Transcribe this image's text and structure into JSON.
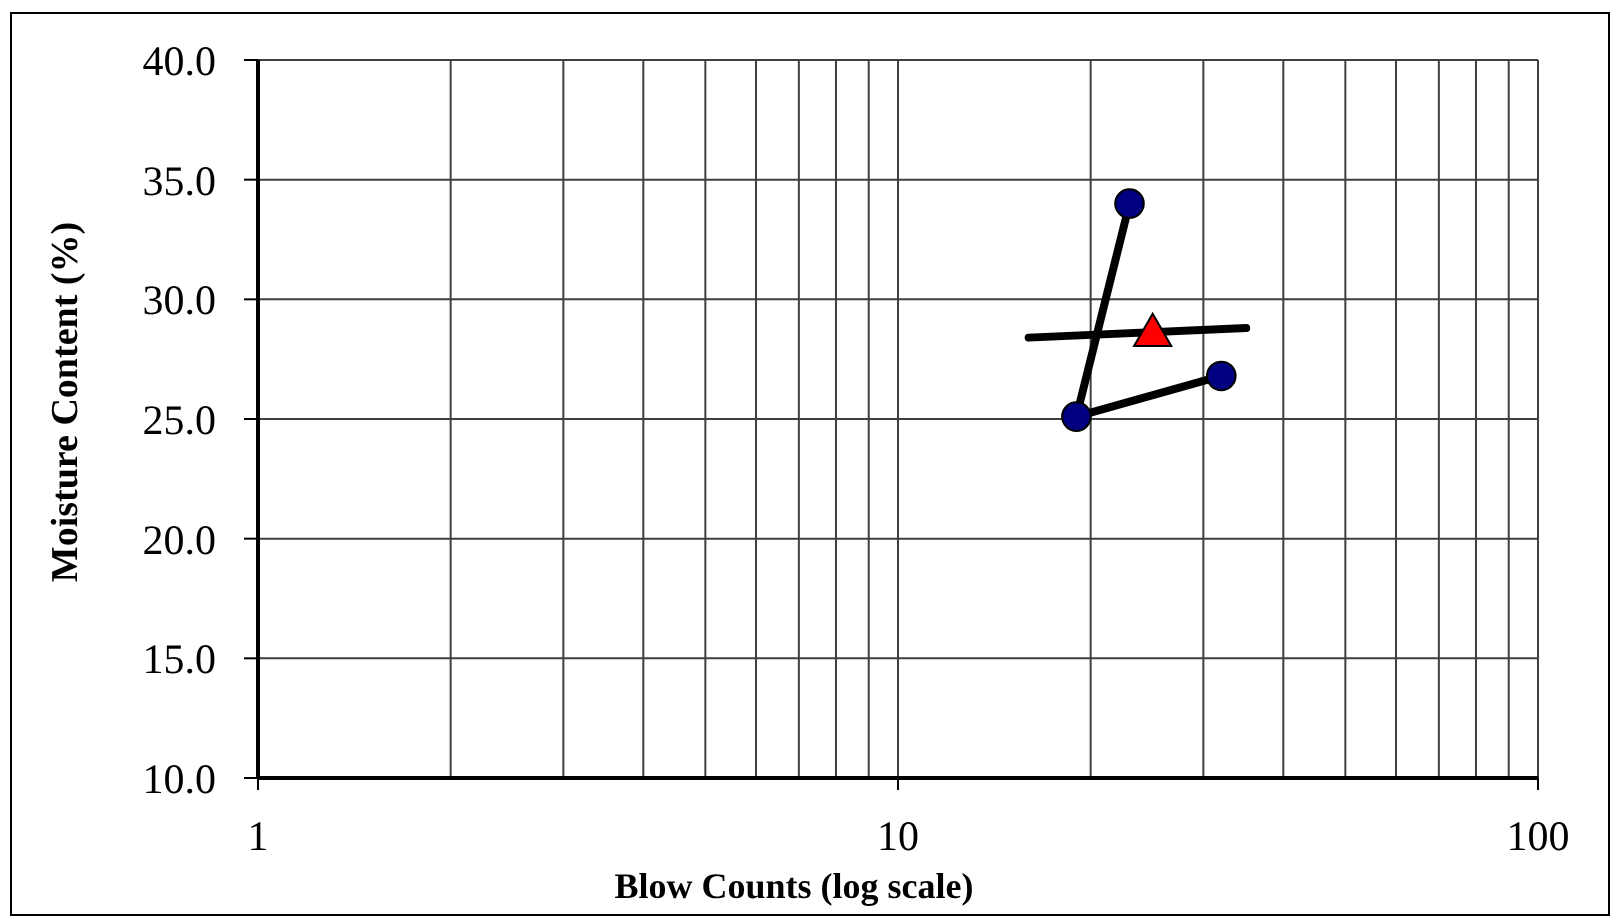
{
  "chart_data": {
    "type": "scatter",
    "xlabel": "Blow Counts (log scale)",
    "ylabel": "Moisture Content (%)",
    "series": [
      {
        "type": "line",
        "x": [
          23,
          19,
          32
        ],
        "values": [
          34,
          25.1,
          26.8
        ],
        "color": "#000000",
        "marker": "none"
      },
      {
        "x": [
          23,
          19,
          32
        ],
        "values": [
          34,
          25.1,
          26.8
        ],
        "color": "#000080",
        "marker": "circle"
      },
      {
        "type": "line",
        "x": [
          16,
          35
        ],
        "values": [
          28.4,
          28.8
        ],
        "color": "#000000",
        "marker": "none"
      },
      {
        "x": [
          25
        ],
        "values": [
          28.5
        ],
        "color": "#ff0000",
        "marker": "triangle"
      }
    ],
    "log": "x",
    "xlim": [
      1,
      100
    ],
    "xticks": [
      1,
      {
        "value": 2,
        "label": null
      },
      {
        "value": 3,
        "label": null
      },
      {
        "value": 4,
        "label": null
      },
      {
        "value": 5,
        "label": null
      },
      {
        "value": 6,
        "label": null
      },
      {
        "value": 7,
        "label": null
      },
      {
        "value": 8,
        "label": null
      },
      {
        "value": 9,
        "label": null
      },
      10,
      {
        "value": 20,
        "label": null
      },
      {
        "value": 30,
        "label": null
      },
      {
        "value": 40,
        "label": null
      },
      {
        "value": 50,
        "label": null
      },
      {
        "value": 60,
        "label": null
      },
      {
        "value": 70,
        "label": null
      },
      {
        "value": 80,
        "label": null
      },
      {
        "value": 90,
        "label": null
      },
      100
    ],
    "ylim": [
      10,
      40
    ],
    "yticks": [
      {
        "value": 10,
        "label": "10.0"
      },
      {
        "value": 15,
        "label": "15.0"
      },
      {
        "value": 20,
        "label": "20.0"
      },
      {
        "value": 25,
        "label": "25.0"
      },
      {
        "value": 30,
        "label": "30.0"
      },
      {
        "value": 35,
        "label": "35.0"
      },
      {
        "value": 40,
        "label": "40.0"
      }
    ],
    "grid": true
  }
}
